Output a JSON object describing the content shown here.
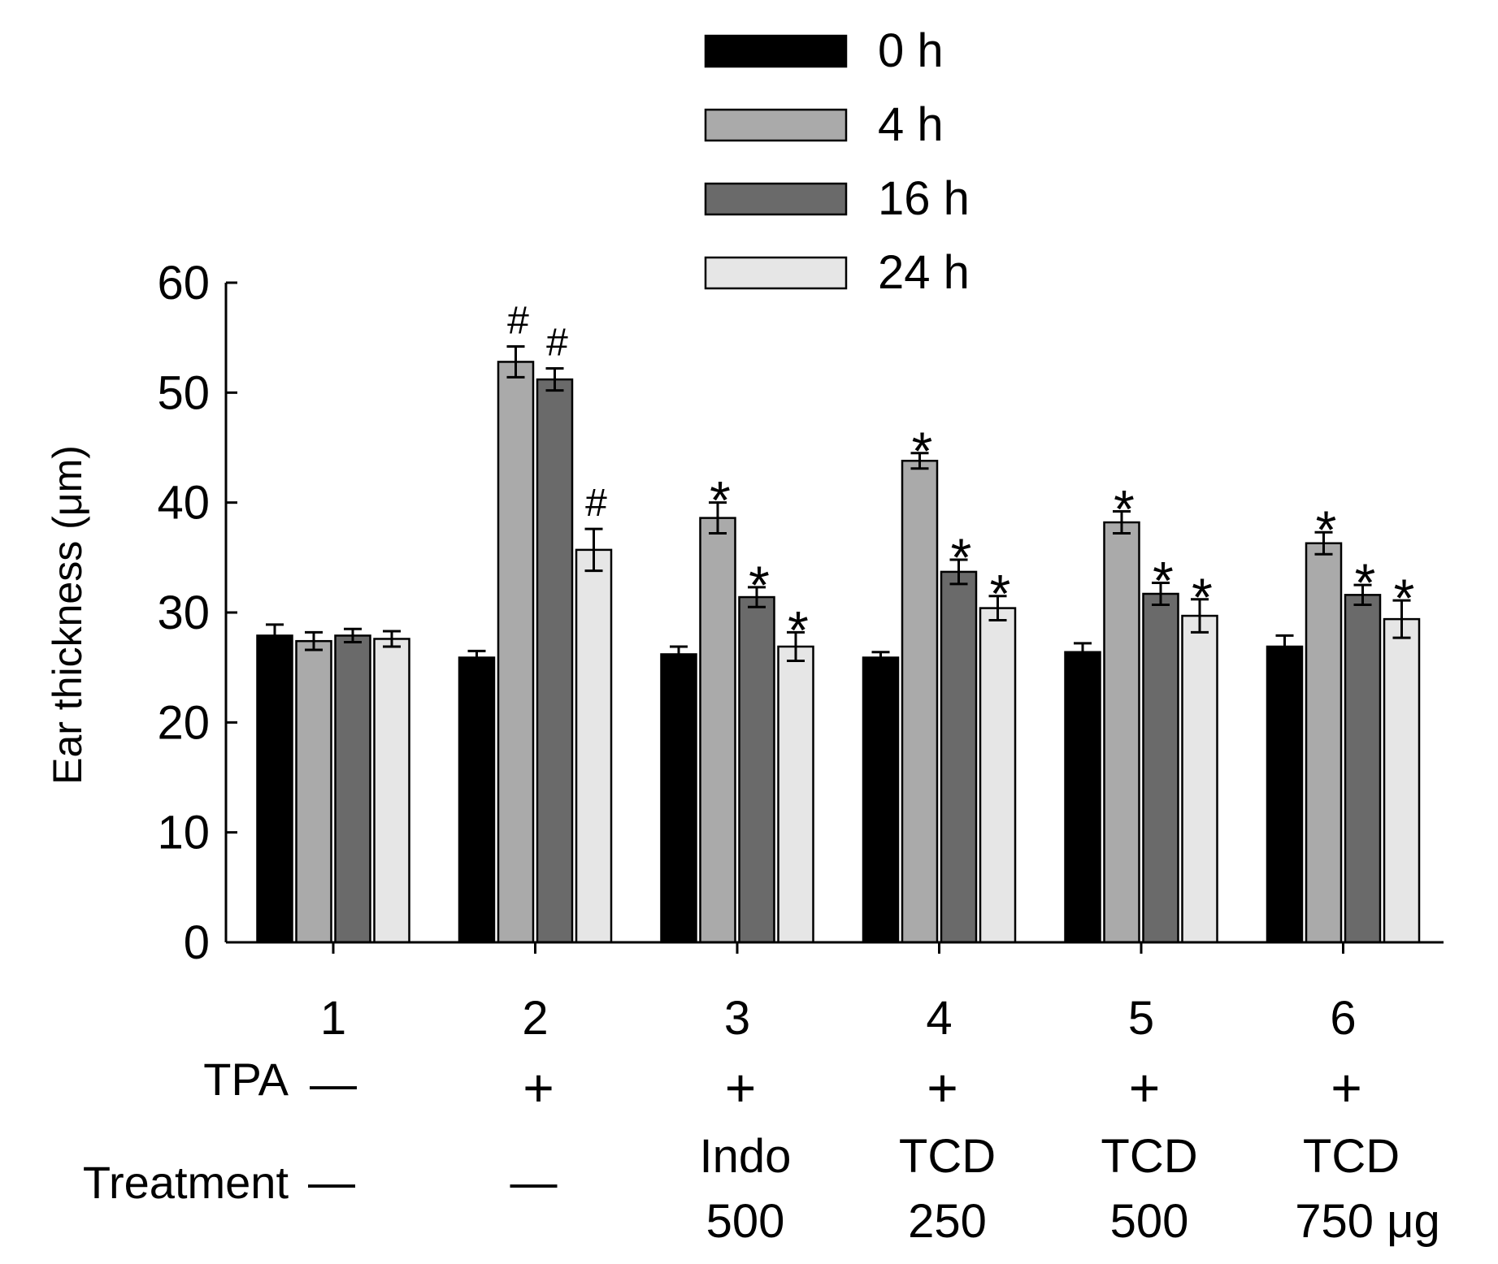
{
  "chart_data": {
    "type": "bar",
    "ylabel": "Ear thickness (μm)",
    "ylim": [
      0,
      60
    ],
    "yticks": [
      0,
      10,
      20,
      30,
      40,
      50,
      60
    ],
    "categories": [
      "1",
      "2",
      "3",
      "4",
      "5",
      "6"
    ],
    "row_labels": {
      "tpa": "TPA",
      "treatment": "Treatment"
    },
    "tpa": [
      "—",
      "+",
      "+",
      "+",
      "+",
      "+"
    ],
    "treatment": [
      [
        "—"
      ],
      [
        "—"
      ],
      [
        "Indo",
        "500"
      ],
      [
        "TCD",
        "250"
      ],
      [
        "TCD",
        "500"
      ],
      [
        "TCD",
        "750 μg"
      ]
    ],
    "series": [
      {
        "name": "0 h",
        "color": "#000000",
        "values": [
          27.9,
          25.9,
          26.2,
          25.9,
          26.4,
          26.9
        ],
        "errors": [
          1.0,
          0.6,
          0.7,
          0.5,
          0.8,
          1.0
        ],
        "marks": [
          "",
          "",
          "",
          "",
          "",
          ""
        ]
      },
      {
        "name": "4 h",
        "color": "#aaaaaa",
        "values": [
          27.4,
          52.8,
          38.6,
          43.8,
          38.2,
          36.3
        ],
        "errors": [
          0.8,
          1.4,
          1.4,
          0.7,
          1.0,
          1.0
        ],
        "marks": [
          "",
          "#",
          "*",
          "*",
          "*",
          "*"
        ]
      },
      {
        "name": "16 h",
        "color": "#6a6a6a",
        "values": [
          27.9,
          51.2,
          31.4,
          33.7,
          31.7,
          31.6
        ],
        "errors": [
          0.6,
          1.0,
          0.9,
          1.1,
          1.0,
          0.9
        ],
        "marks": [
          "",
          "#",
          "*",
          "*",
          "*",
          "*"
        ]
      },
      {
        "name": "24 h",
        "color": "#e6e6e6",
        "values": [
          27.6,
          35.7,
          26.9,
          30.4,
          29.7,
          29.4
        ],
        "errors": [
          0.7,
          1.9,
          1.3,
          1.1,
          1.5,
          1.7
        ],
        "marks": [
          "",
          "#",
          "*",
          "*",
          "*",
          "*"
        ]
      }
    ]
  }
}
